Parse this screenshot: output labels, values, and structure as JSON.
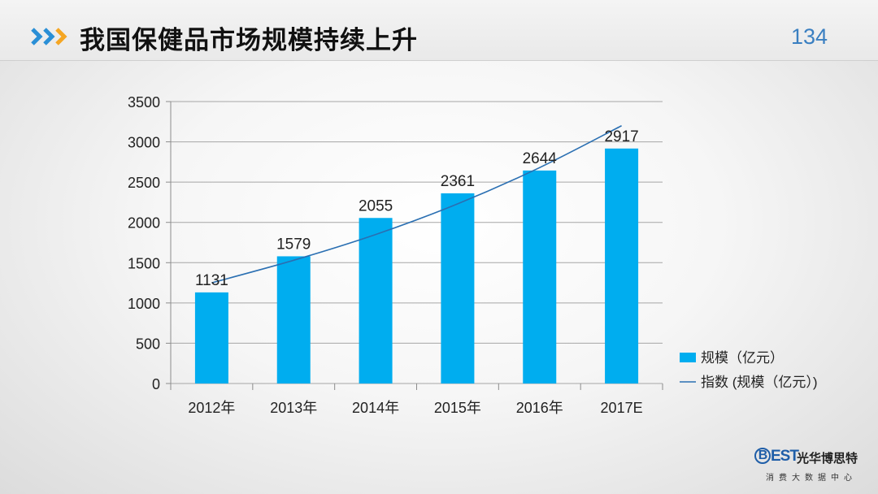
{
  "header": {
    "title": "我国保健品市场规模持续上升",
    "page_number": "134"
  },
  "logo": {
    "best_text": "BEST",
    "company": "光华博思特",
    "tagline": "消费大数据中心"
  },
  "colors": {
    "bar": "#00adef",
    "line": "#2a6fb2",
    "accent_chevron": "#2a8fd6",
    "accent_chevron_2": "#f5a623"
  },
  "chart_data": {
    "type": "bar",
    "categories": [
      "2012年",
      "2013年",
      "2014年",
      "2015年",
      "2016年",
      "2017E"
    ],
    "series": [
      {
        "name": "规模（亿元）",
        "type": "bar",
        "values": [
          1131,
          1579,
          2055,
          2361,
          2644,
          2917
        ]
      },
      {
        "name": "指数 (规模（亿元）)",
        "type": "line-trend",
        "values": [
          1250,
          1530,
          1850,
          2230,
          2680,
          3200
        ]
      }
    ],
    "data_labels": [
      "1131",
      "1579",
      "2055",
      "2361",
      "2644",
      "2917"
    ],
    "y_ticks": [
      "0",
      "500",
      "1000",
      "1500",
      "2000",
      "2500",
      "3000",
      "3500"
    ],
    "ylim": [
      0,
      3500
    ],
    "grid": true,
    "legend_position": "right"
  }
}
